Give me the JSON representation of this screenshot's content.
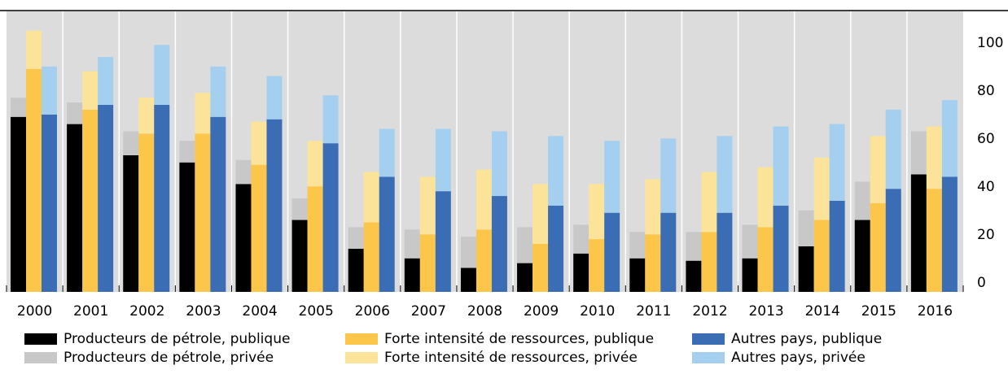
{
  "chart_data": {
    "type": "bar",
    "categories": [
      "2000",
      "2001",
      "2002",
      "2003",
      "2004",
      "2005",
      "2006",
      "2007",
      "2008",
      "2009",
      "2010",
      "2011",
      "2012",
      "2013",
      "2014",
      "2015",
      "2016"
    ],
    "series": [
      {
        "name": "Producteurs de pétrole, publique",
        "color": "#000000",
        "values": [
          73,
          70,
          57,
          54,
          45,
          30,
          18,
          14,
          10,
          12,
          16,
          14,
          13,
          14,
          19,
          30,
          49
        ]
      },
      {
        "name": "Producteurs de pétrole, privée",
        "color": "#c8c8c8",
        "values": [
          8,
          9,
          10,
          9,
          10,
          9,
          9,
          12,
          13,
          15,
          12,
          11,
          12,
          14,
          15,
          16,
          18
        ]
      },
      {
        "name": "Forte intensité de ressources, publique",
        "color": "#fcc64a",
        "values": [
          93,
          76,
          66,
          66,
          53,
          44,
          29,
          24,
          26,
          20,
          22,
          24,
          25,
          27,
          30,
          37,
          43
        ]
      },
      {
        "name": "Forte intensité de ressources, privée",
        "color": "#fbe49a",
        "values": [
          16,
          16,
          15,
          17,
          18,
          19,
          21,
          24,
          25,
          25,
          23,
          23,
          25,
          25,
          26,
          28,
          26
        ]
      },
      {
        "name": "Autres pays, publique",
        "color": "#3b6db4",
        "values": [
          74,
          78,
          78,
          73,
          72,
          62,
          48,
          42,
          40,
          36,
          33,
          33,
          33,
          36,
          38,
          43,
          48
        ]
      },
      {
        "name": "Autres pays, privée",
        "color": "#a4cfee",
        "values": [
          20,
          20,
          25,
          21,
          18,
          20,
          20,
          26,
          27,
          29,
          30,
          31,
          32,
          33,
          32,
          33,
          32
        ]
      }
    ],
    "ylim": [
      0,
      117
    ],
    "yticks": [
      0,
      20,
      40,
      60,
      80,
      100
    ],
    "grid": false
  }
}
